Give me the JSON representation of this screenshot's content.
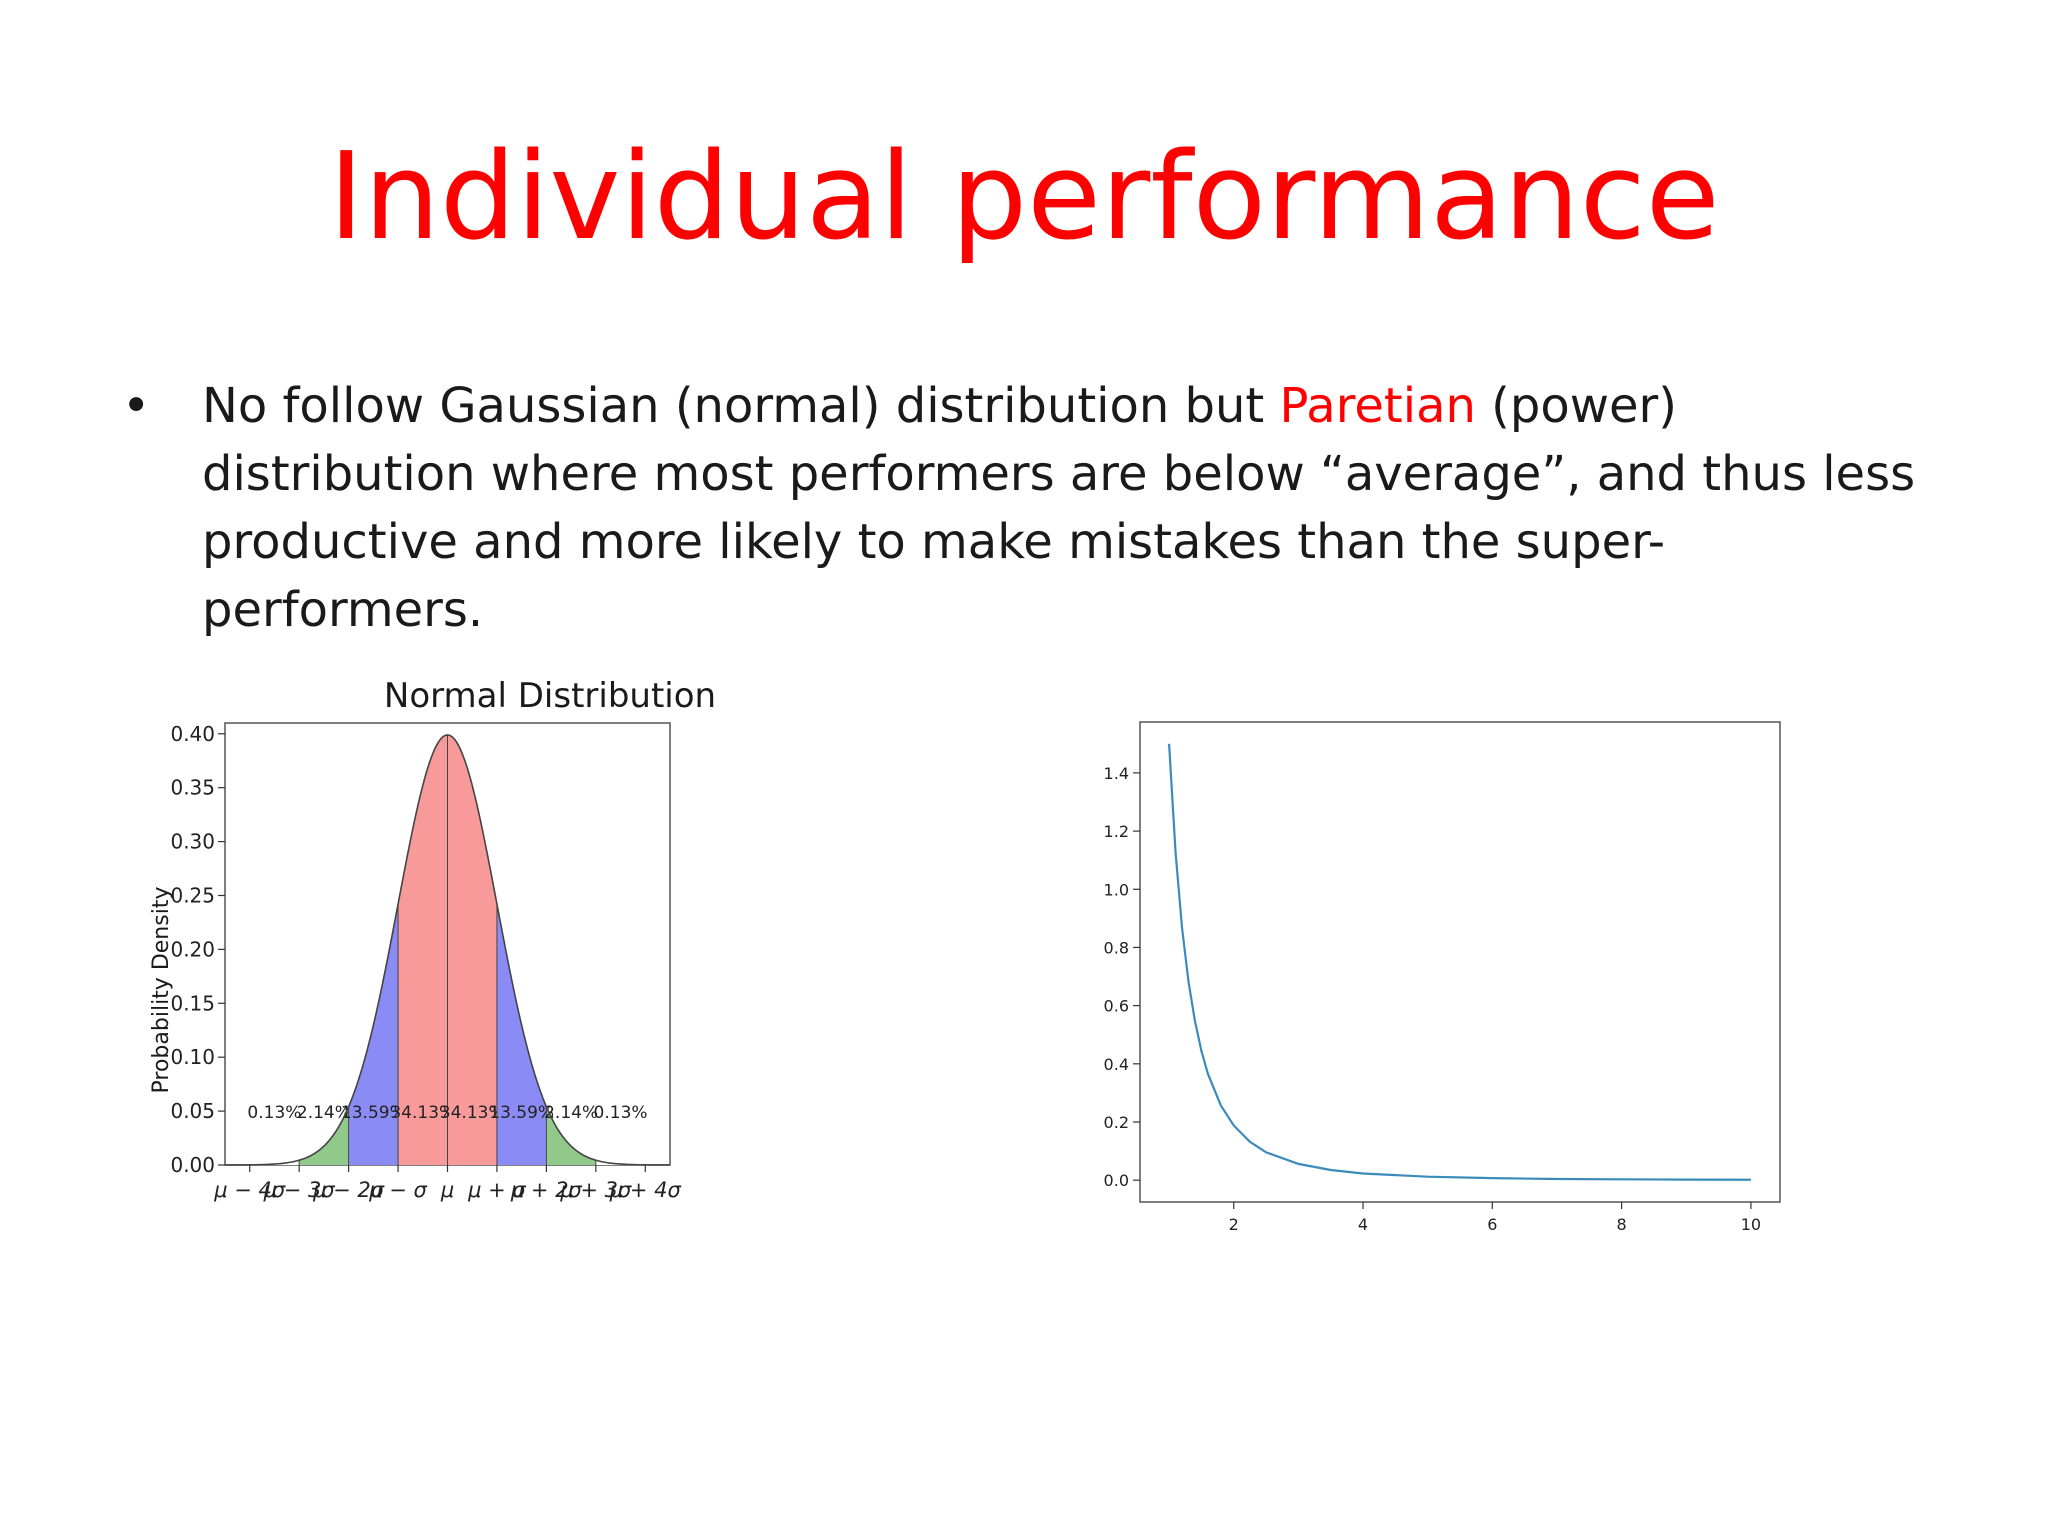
{
  "slide": {
    "title": "Individual performance",
    "bullet": {
      "pre": "No follow Gaussian (normal) distribution but ",
      "highlight": "Paretian",
      "post": " (power) distribution where most performers are below “average”, and thus less productive and more likely to make mistakes than the super-performers."
    },
    "colors": {
      "title": "#ff0000",
      "highlight": "#ff0000"
    }
  },
  "chart_data": [
    {
      "type": "area",
      "title": "Normal Distribution",
      "xlabel": "",
      "ylabel": "Probability Density",
      "function": "normal pdf, mean 0, standard deviation 1",
      "xlim": [
        -4.5,
        4.5
      ],
      "ylim": [
        0,
        0.41
      ],
      "y_ticks": [
        0.0,
        0.05,
        0.1,
        0.15,
        0.2,
        0.25,
        0.3,
        0.35,
        0.4
      ],
      "y_tick_labels": [
        "0.00",
        "0.05",
        "0.10",
        "0.15",
        "0.20",
        "0.25",
        "0.30",
        "0.35",
        "0.40"
      ],
      "x_ticks": [
        -4,
        -3,
        -2,
        -1,
        0,
        1,
        2,
        3,
        4
      ],
      "x_tick_labels": [
        "μ − 4σ",
        "μ − 3σ",
        "μ − 2σ",
        "μ − σ",
        "μ",
        "μ + σ",
        "μ + 2σ",
        "μ + 3σ",
        "μ + 4σ"
      ],
      "regions": [
        {
          "from": -4,
          "to": -3,
          "label": "0.13%",
          "color": "#ffffff"
        },
        {
          "from": -3,
          "to": -2,
          "label": "2.14%",
          "color": "#90c98a"
        },
        {
          "from": -2,
          "to": -1,
          "label": "13.59%",
          "color": "#8b8bf5"
        },
        {
          "from": -1,
          "to": 0,
          "label": "34.13%",
          "color": "#f99a9a"
        },
        {
          "from": 0,
          "to": 1,
          "label": "34.13%",
          "color": "#f99a9a"
        },
        {
          "from": 1,
          "to": 2,
          "label": "13.59%",
          "color": "#8b8bf5"
        },
        {
          "from": 2,
          "to": 3,
          "label": "2.14%",
          "color": "#90c98a"
        },
        {
          "from": 3,
          "to": 4,
          "label": "0.13%",
          "color": "#ffffff"
        }
      ],
      "grid": false,
      "legend": "none"
    },
    {
      "type": "line",
      "title": "",
      "xlabel": "",
      "ylabel": "",
      "x": [
        1.0,
        1.1,
        1.2,
        1.3,
        1.4,
        1.5,
        1.6,
        1.8,
        2.0,
        2.25,
        2.5,
        3.0,
        3.5,
        4.0,
        5.0,
        6.0,
        7.0,
        8.0,
        9.0,
        10.0
      ],
      "y": [
        1.5,
        1.127,
        0.868,
        0.683,
        0.547,
        0.444,
        0.366,
        0.257,
        0.188,
        0.132,
        0.096,
        0.056,
        0.035,
        0.023,
        0.012,
        0.007,
        0.004,
        0.003,
        0.002,
        0.0015
      ],
      "xlim": [
        0.55,
        10.45
      ],
      "ylim": [
        -0.075,
        1.575
      ],
      "x_ticks": [
        2,
        4,
        6,
        8,
        10
      ],
      "x_tick_labels": [
        "2",
        "4",
        "6",
        "8",
        "10"
      ],
      "y_ticks": [
        0.0,
        0.2,
        0.4,
        0.6,
        0.8,
        1.0,
        1.2,
        1.4
      ],
      "y_tick_labels": [
        "0.0",
        "0.2",
        "0.4",
        "0.6",
        "0.8",
        "1.0",
        "1.2",
        "1.4"
      ],
      "line_color": "#3b8bba",
      "grid": false,
      "legend": "none"
    }
  ]
}
